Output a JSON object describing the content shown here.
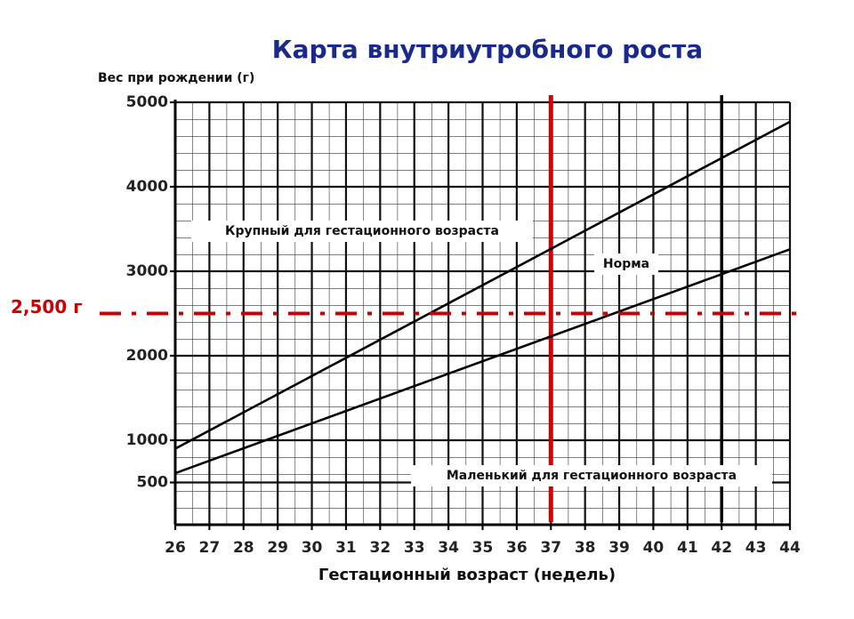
{
  "chart_data": {
    "type": "line",
    "title": "Карта внутриутробного роста",
    "x_label": "Гестационный возраст (недель)",
    "y_label": "Вес при рождении (г)",
    "x": [
      26,
      44
    ],
    "series": [
      {
        "color": "#000000",
        "values": [
          900,
          4770
        ]
      },
      {
        "color": "#000000",
        "values": [
          610,
          3260
        ]
      }
    ],
    "xlim": [
      26,
      44
    ],
    "xticks": [
      26,
      27,
      28,
      29,
      30,
      31,
      32,
      33,
      34,
      35,
      36,
      37,
      38,
      39,
      40,
      41,
      42,
      43,
      44
    ],
    "ylim": [
      0,
      5000
    ],
    "yticks": [
      500,
      1000,
      2000,
      3000,
      4000,
      5000
    ],
    "grid": true,
    "vlines": [
      {
        "x": 37,
        "color": "#d40000"
      },
      {
        "x": 42,
        "color": "#000000"
      }
    ],
    "hlines": [
      {
        "y": 2500,
        "label": "2,500 г",
        "color": "#cc0000"
      }
    ],
    "annotations": [
      "Крупный для гестационного возраста",
      "Норма",
      "Маленький для гестационного возраста"
    ]
  }
}
